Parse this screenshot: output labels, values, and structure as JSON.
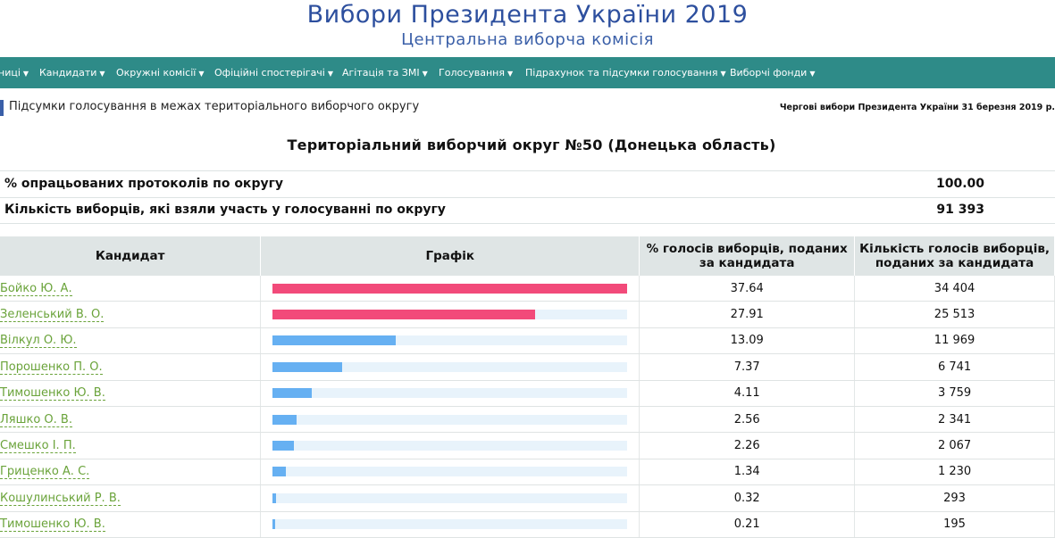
{
  "header": {
    "title": "Вибори Президента України 2019",
    "subtitle": "Центральна виборча комісія"
  },
  "nav": {
    "items": [
      {
        "label": "ниці"
      },
      {
        "label": "Кандидати"
      },
      {
        "label": "Окружні комісії"
      },
      {
        "label": "Офіційні спостерігачі"
      },
      {
        "label": "Агітація та ЗМІ"
      },
      {
        "label": "Голосування"
      },
      {
        "label": "Підрахунок та підсумки голосування"
      },
      {
        "label": "Виборчі фонди"
      }
    ]
  },
  "breadcrumb": "Підсумки голосування в межах територіального виборчого округу",
  "election_label": "Чергові вибори Президента України 31 березня 2019 р.",
  "district_title": "Територіальний виборчий округ №50 (Донецька область)",
  "stats": {
    "processed_label": "% опрацьованих протоколів по округу",
    "processed_value": "100.00",
    "turnout_label": "Кількість виборців, які взяли участь у голосуванні по округу",
    "turnout_value": "91 393"
  },
  "table": {
    "headers": {
      "candidate": "Кандидат",
      "chart": "Графік",
      "percent": "% голосів виборців, поданих за кандидата",
      "count": "Кількість голосів виборців, поданих за кандидата"
    },
    "colors": {
      "top": "#f24a7a",
      "other": "#66b0f2",
      "track": "#e8f3fb"
    },
    "rows": [
      {
        "name": "Бойко Ю. А.",
        "percent": "37.64",
        "count": "34 404",
        "share": 1.0,
        "top": true
      },
      {
        "name": "Зеленський В. О.",
        "percent": "27.91",
        "count": "25 513",
        "share": 0.741,
        "top": true
      },
      {
        "name": "Вілкул О. Ю.",
        "percent": "13.09",
        "count": "11 969",
        "share": 0.348,
        "top": false
      },
      {
        "name": "Порошенко П. О.",
        "percent": "7.37",
        "count": "6 741",
        "share": 0.196,
        "top": false
      },
      {
        "name": "Тимошенко Ю. В.",
        "percent": "4.11",
        "count": "3 759",
        "share": 0.109,
        "top": false
      },
      {
        "name": "Ляшко О. В.",
        "percent": "2.56",
        "count": "2 341",
        "share": 0.068,
        "top": false
      },
      {
        "name": "Смешко І. П.",
        "percent": "2.26",
        "count": "2 067",
        "share": 0.06,
        "top": false
      },
      {
        "name": "Гриценко А. С.",
        "percent": "1.34",
        "count": "1 230",
        "share": 0.036,
        "top": false
      },
      {
        "name": "Кошулинський Р. В.",
        "percent": "0.32",
        "count": "293",
        "share": 0.0085,
        "top": false
      },
      {
        "name": "Тимошенко Ю. В.",
        "percent": "0.21",
        "count": "195",
        "share": 0.0056,
        "top": false
      }
    ]
  }
}
